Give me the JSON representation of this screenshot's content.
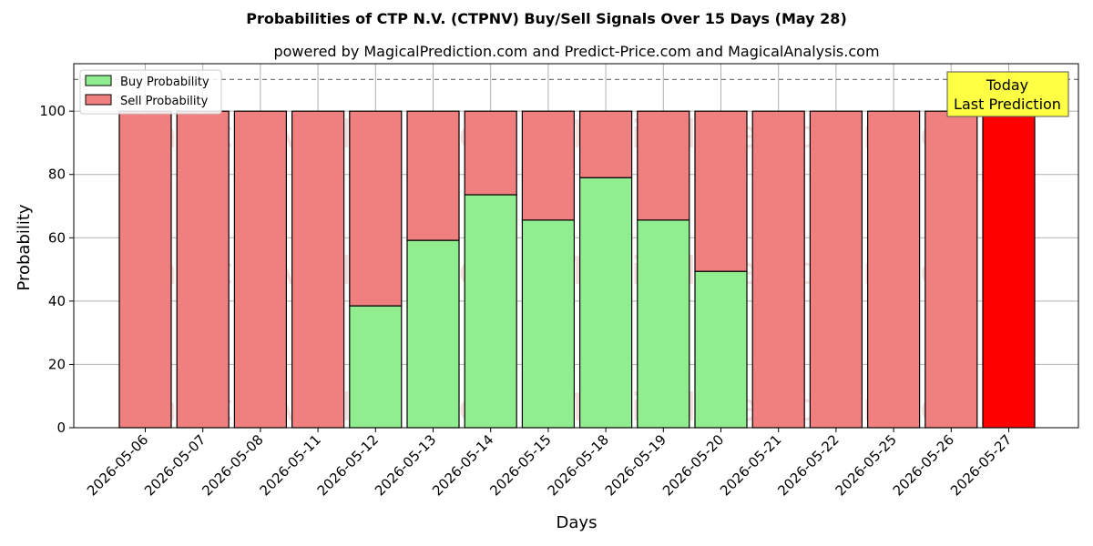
{
  "chart_data": {
    "type": "bar",
    "stacked": true,
    "title": "Probabilities of CTP N.V. (CTPNV) Buy/Sell Signals Over 15 Days (May 28)",
    "subtitle": "powered by MagicalPrediction.com and Predict-Price.com and MagicalAnalysis.com",
    "xlabel": "Days",
    "ylabel": "Probability",
    "ylim": [
      0,
      115
    ],
    "yticks": [
      0,
      20,
      40,
      60,
      80,
      100
    ],
    "reference_line": 110,
    "grid": true,
    "legend_position": "top-left",
    "categories": [
      "2026-05-06",
      "2026-05-07",
      "2026-05-08",
      "2026-05-11",
      "2026-05-12",
      "2026-05-13",
      "2026-05-14",
      "2026-05-15",
      "2026-05-18",
      "2026-05-19",
      "2026-05-20",
      "2026-05-21",
      "2026-05-22",
      "2026-05-25",
      "2026-05-26",
      "2026-05-27"
    ],
    "series": [
      {
        "name": "Buy Probability",
        "color": "#90ee90",
        "values": [
          0,
          0,
          0,
          0,
          38.5,
          59.2,
          73.6,
          65.6,
          79.0,
          65.6,
          49.4,
          0,
          0,
          0,
          0,
          0
        ]
      },
      {
        "name": "Sell Probability",
        "color": "#f08080",
        "values": [
          100,
          100,
          100,
          100,
          61.5,
          40.8,
          26.4,
          34.4,
          21.0,
          34.4,
          50.6,
          100,
          100,
          100,
          100,
          100
        ]
      }
    ],
    "highlight": {
      "index": 15,
      "color": "#ff0000"
    },
    "annotation": {
      "lines": [
        "Today",
        "Last Prediction"
      ],
      "background": "#ffff44"
    },
    "watermarks": [
      "MagicalAnalysis.com",
      "MagicalPrediction.com"
    ]
  }
}
